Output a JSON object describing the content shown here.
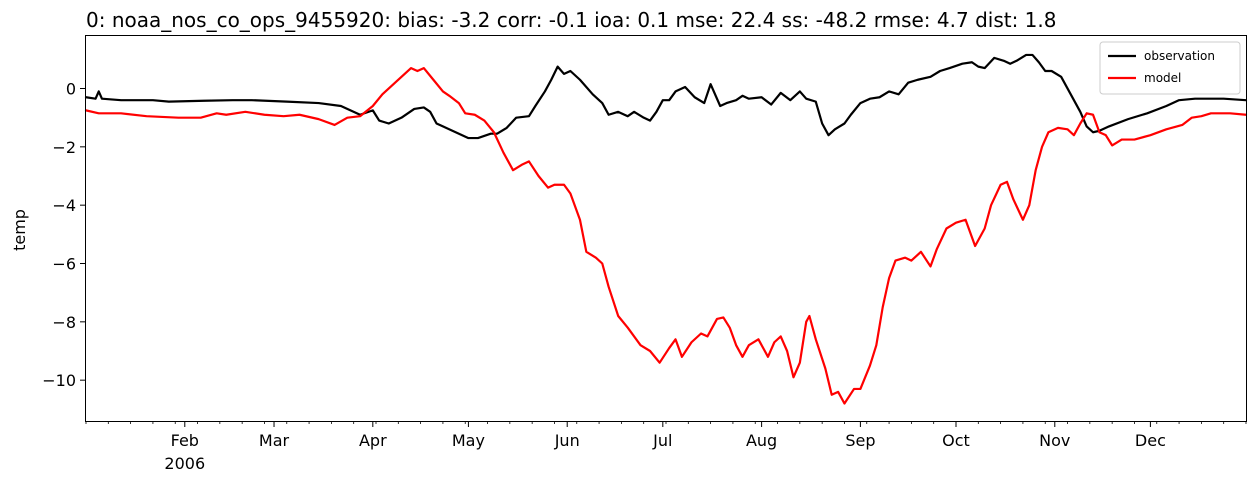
{
  "chart_data": {
    "type": "line",
    "title": "0: noaa_nos_co_ops_9455920: bias: -3.2  corr: -0.1  ioa: 0.1  mse: 22.4  ss: -48.2  rmse: 4.7  dist: 1.8",
    "xlabel": "",
    "ylabel": "temp",
    "xlim": [
      "2006-01-01",
      "2006-12-31"
    ],
    "ylim": [
      -11.4,
      1.8
    ],
    "x_ticks": [
      {
        "date": "2006-02-01",
        "label": "Feb",
        "sublabel": "2006"
      },
      {
        "date": "2006-03-01",
        "label": "Mar"
      },
      {
        "date": "2006-04-01",
        "label": "Apr"
      },
      {
        "date": "2006-05-01",
        "label": "May"
      },
      {
        "date": "2006-06-01",
        "label": "Jun"
      },
      {
        "date": "2006-07-01",
        "label": "Jul"
      },
      {
        "date": "2006-08-01",
        "label": "Aug"
      },
      {
        "date": "2006-09-01",
        "label": "Sep"
      },
      {
        "date": "2006-10-01",
        "label": "Oct"
      },
      {
        "date": "2006-11-01",
        "label": "Nov"
      },
      {
        "date": "2006-12-01",
        "label": "Dec"
      }
    ],
    "y_ticks": [
      0,
      -2,
      -4,
      -6,
      -8,
      -10
    ],
    "y_tick_labels": [
      "0",
      "−2",
      "−4",
      "−6",
      "−8",
      "−10"
    ],
    "grid": false,
    "legend_position": "top-right",
    "series": [
      {
        "name": "observation",
        "color": "#000000",
        "points": [
          [
            "2006-01-01",
            -0.3
          ],
          [
            "2006-01-04",
            -0.35
          ],
          [
            "2006-01-05",
            -0.1
          ],
          [
            "2006-01-06",
            -0.35
          ],
          [
            "2006-01-12",
            -0.4
          ],
          [
            "2006-01-22",
            -0.4
          ],
          [
            "2006-01-27",
            -0.45
          ],
          [
            "2006-02-07",
            -0.42
          ],
          [
            "2006-02-16",
            -0.4
          ],
          [
            "2006-02-22",
            -0.4
          ],
          [
            "2006-03-05",
            -0.45
          ],
          [
            "2006-03-15",
            -0.5
          ],
          [
            "2006-03-22",
            -0.6
          ],
          [
            "2006-03-25",
            -0.75
          ],
          [
            "2006-03-28",
            -0.9
          ],
          [
            "2006-04-01",
            -0.75
          ],
          [
            "2006-04-03",
            -1.1
          ],
          [
            "2006-04-06",
            -1.2
          ],
          [
            "2006-04-10",
            -1.0
          ],
          [
            "2006-04-14",
            -0.7
          ],
          [
            "2006-04-17",
            -0.65
          ],
          [
            "2006-04-19",
            -0.8
          ],
          [
            "2006-04-21",
            -1.2
          ],
          [
            "2006-04-23",
            -1.3
          ],
          [
            "2006-04-27",
            -1.5
          ],
          [
            "2006-05-01",
            -1.7
          ],
          [
            "2006-05-04",
            -1.7
          ],
          [
            "2006-05-08",
            -1.55
          ],
          [
            "2006-05-10",
            -1.55
          ],
          [
            "2006-05-13",
            -1.35
          ],
          [
            "2006-05-16",
            -1.0
          ],
          [
            "2006-05-20",
            -0.95
          ],
          [
            "2006-05-22",
            -0.6
          ],
          [
            "2006-05-25",
            -0.1
          ],
          [
            "2006-05-27",
            0.3
          ],
          [
            "2006-05-29",
            0.75
          ],
          [
            "2006-05-31",
            0.5
          ],
          [
            "2006-06-02",
            0.6
          ],
          [
            "2006-06-05",
            0.3
          ],
          [
            "2006-06-09",
            -0.2
          ],
          [
            "2006-06-12",
            -0.5
          ],
          [
            "2006-06-14",
            -0.9
          ],
          [
            "2006-06-17",
            -0.8
          ],
          [
            "2006-06-20",
            -0.95
          ],
          [
            "2006-06-22",
            -0.8
          ],
          [
            "2006-06-25",
            -1.0
          ],
          [
            "2006-06-27",
            -1.1
          ],
          [
            "2006-06-29",
            -0.8
          ],
          [
            "2006-07-01",
            -0.4
          ],
          [
            "2006-07-03",
            -0.4
          ],
          [
            "2006-07-05",
            -0.1
          ],
          [
            "2006-07-08",
            0.05
          ],
          [
            "2006-07-11",
            -0.3
          ],
          [
            "2006-07-14",
            -0.5
          ],
          [
            "2006-07-16",
            0.15
          ],
          [
            "2006-07-19",
            -0.6
          ],
          [
            "2006-07-21",
            -0.5
          ],
          [
            "2006-07-24",
            -0.4
          ],
          [
            "2006-07-26",
            -0.25
          ],
          [
            "2006-07-28",
            -0.35
          ],
          [
            "2006-08-01",
            -0.3
          ],
          [
            "2006-08-04",
            -0.55
          ],
          [
            "2006-08-07",
            -0.15
          ],
          [
            "2006-08-10",
            -0.4
          ],
          [
            "2006-08-13",
            -0.1
          ],
          [
            "2006-08-15",
            -0.35
          ],
          [
            "2006-08-18",
            -0.45
          ],
          [
            "2006-08-20",
            -1.2
          ],
          [
            "2006-08-22",
            -1.6
          ],
          [
            "2006-08-24",
            -1.4
          ],
          [
            "2006-08-27",
            -1.2
          ],
          [
            "2006-08-29",
            -0.9
          ],
          [
            "2006-09-01",
            -0.5
          ],
          [
            "2006-09-04",
            -0.35
          ],
          [
            "2006-09-07",
            -0.3
          ],
          [
            "2006-09-10",
            -0.1
          ],
          [
            "2006-09-13",
            -0.2
          ],
          [
            "2006-09-16",
            0.2
          ],
          [
            "2006-09-19",
            0.3
          ],
          [
            "2006-09-23",
            0.4
          ],
          [
            "2006-09-26",
            0.6
          ],
          [
            "2006-09-29",
            0.7
          ],
          [
            "2006-10-03",
            0.85
          ],
          [
            "2006-10-06",
            0.9
          ],
          [
            "2006-10-08",
            0.75
          ],
          [
            "2006-10-10",
            0.7
          ],
          [
            "2006-10-13",
            1.05
          ],
          [
            "2006-10-16",
            0.95
          ],
          [
            "2006-10-18",
            0.85
          ],
          [
            "2006-10-20",
            0.95
          ],
          [
            "2006-10-23",
            1.15
          ],
          [
            "2006-10-25",
            1.15
          ],
          [
            "2006-10-27",
            0.9
          ],
          [
            "2006-10-29",
            0.6
          ],
          [
            "2006-10-31",
            0.6
          ],
          [
            "2006-11-03",
            0.4
          ],
          [
            "2006-11-06",
            -0.2
          ],
          [
            "2006-11-09",
            -0.8
          ],
          [
            "2006-11-11",
            -1.3
          ],
          [
            "2006-11-13",
            -1.5
          ],
          [
            "2006-11-15",
            -1.45
          ],
          [
            "2006-11-18",
            -1.3
          ],
          [
            "2006-11-24",
            -1.05
          ],
          [
            "2006-11-30",
            -0.85
          ],
          [
            "2006-12-06",
            -0.6
          ],
          [
            "2006-12-10",
            -0.4
          ],
          [
            "2006-12-15",
            -0.35
          ],
          [
            "2006-12-24",
            -0.35
          ],
          [
            "2006-12-31",
            -0.4
          ]
        ]
      },
      {
        "name": "model",
        "color": "#ff0000",
        "points": [
          [
            "2006-01-01",
            -0.75
          ],
          [
            "2006-01-05",
            -0.85
          ],
          [
            "2006-01-12",
            -0.85
          ],
          [
            "2006-01-20",
            -0.95
          ],
          [
            "2006-01-30",
            -1.0
          ],
          [
            "2006-02-06",
            -1.0
          ],
          [
            "2006-02-11",
            -0.85
          ],
          [
            "2006-02-14",
            -0.9
          ],
          [
            "2006-02-20",
            -0.8
          ],
          [
            "2006-02-26",
            -0.9
          ],
          [
            "2006-03-04",
            -0.95
          ],
          [
            "2006-03-09",
            -0.9
          ],
          [
            "2006-03-15",
            -1.05
          ],
          [
            "2006-03-20",
            -1.25
          ],
          [
            "2006-03-24",
            -1.0
          ],
          [
            "2006-03-28",
            -0.95
          ],
          [
            "2006-04-01",
            -0.6
          ],
          [
            "2006-04-04",
            -0.2
          ],
          [
            "2006-04-07",
            0.1
          ],
          [
            "2006-04-10",
            0.4
          ],
          [
            "2006-04-13",
            0.7
          ],
          [
            "2006-04-15",
            0.6
          ],
          [
            "2006-04-17",
            0.7
          ],
          [
            "2006-04-20",
            0.3
          ],
          [
            "2006-04-23",
            -0.1
          ],
          [
            "2006-04-25",
            -0.25
          ],
          [
            "2006-04-28",
            -0.5
          ],
          [
            "2006-04-30",
            -0.85
          ],
          [
            "2006-05-03",
            -0.9
          ],
          [
            "2006-05-06",
            -1.1
          ],
          [
            "2006-05-09",
            -1.5
          ],
          [
            "2006-05-12",
            -2.2
          ],
          [
            "2006-05-15",
            -2.8
          ],
          [
            "2006-05-18",
            -2.6
          ],
          [
            "2006-05-20",
            -2.5
          ],
          [
            "2006-05-23",
            -3.0
          ],
          [
            "2006-05-26",
            -3.4
          ],
          [
            "2006-05-28",
            -3.3
          ],
          [
            "2006-05-31",
            -3.3
          ],
          [
            "2006-06-02",
            -3.6
          ],
          [
            "2006-06-05",
            -4.5
          ],
          [
            "2006-06-07",
            -5.6
          ],
          [
            "2006-06-10",
            -5.8
          ],
          [
            "2006-06-12",
            -6.0
          ],
          [
            "2006-06-14",
            -6.8
          ],
          [
            "2006-06-17",
            -7.8
          ],
          [
            "2006-06-20",
            -8.2
          ],
          [
            "2006-06-24",
            -8.8
          ],
          [
            "2006-06-27",
            -9.0
          ],
          [
            "2006-06-30",
            -9.4
          ],
          [
            "2006-07-03",
            -8.9
          ],
          [
            "2006-07-05",
            -8.6
          ],
          [
            "2006-07-07",
            -9.2
          ],
          [
            "2006-07-10",
            -8.7
          ],
          [
            "2006-07-13",
            -8.4
          ],
          [
            "2006-07-15",
            -8.5
          ],
          [
            "2006-07-18",
            -7.9
          ],
          [
            "2006-07-20",
            -7.85
          ],
          [
            "2006-07-22",
            -8.2
          ],
          [
            "2006-07-24",
            -8.8
          ],
          [
            "2006-07-26",
            -9.2
          ],
          [
            "2006-07-28",
            -8.8
          ],
          [
            "2006-07-31",
            -8.6
          ],
          [
            "2006-08-03",
            -9.2
          ],
          [
            "2006-08-05",
            -8.7
          ],
          [
            "2006-08-07",
            -8.5
          ],
          [
            "2006-08-09",
            -9.0
          ],
          [
            "2006-08-11",
            -9.9
          ],
          [
            "2006-08-13",
            -9.4
          ],
          [
            "2006-08-15",
            -8.0
          ],
          [
            "2006-08-16",
            -7.8
          ],
          [
            "2006-08-18",
            -8.6
          ],
          [
            "2006-08-21",
            -9.6
          ],
          [
            "2006-08-23",
            -10.5
          ],
          [
            "2006-08-25",
            -10.4
          ],
          [
            "2006-08-27",
            -10.8
          ],
          [
            "2006-08-30",
            -10.3
          ],
          [
            "2006-09-01",
            -10.3
          ],
          [
            "2006-09-04",
            -9.5
          ],
          [
            "2006-09-06",
            -8.8
          ],
          [
            "2006-09-08",
            -7.5
          ],
          [
            "2006-09-10",
            -6.5
          ],
          [
            "2006-09-12",
            -5.9
          ],
          [
            "2006-09-15",
            -5.8
          ],
          [
            "2006-09-17",
            -5.9
          ],
          [
            "2006-09-20",
            -5.6
          ],
          [
            "2006-09-23",
            -6.1
          ],
          [
            "2006-09-25",
            -5.5
          ],
          [
            "2006-09-28",
            -4.8
          ],
          [
            "2006-10-01",
            -4.6
          ],
          [
            "2006-10-04",
            -4.5
          ],
          [
            "2006-10-07",
            -5.4
          ],
          [
            "2006-10-10",
            -4.8
          ],
          [
            "2006-10-12",
            -4.0
          ],
          [
            "2006-10-15",
            -3.3
          ],
          [
            "2006-10-17",
            -3.2
          ],
          [
            "2006-10-19",
            -3.8
          ],
          [
            "2006-10-22",
            -4.5
          ],
          [
            "2006-10-24",
            -4.0
          ],
          [
            "2006-10-26",
            -2.8
          ],
          [
            "2006-10-28",
            -2.0
          ],
          [
            "2006-10-30",
            -1.5
          ],
          [
            "2006-11-02",
            -1.35
          ],
          [
            "2006-11-05",
            -1.4
          ],
          [
            "2006-11-07",
            -1.6
          ],
          [
            "2006-11-09",
            -1.2
          ],
          [
            "2006-11-11",
            -0.85
          ],
          [
            "2006-11-13",
            -0.9
          ],
          [
            "2006-11-15",
            -1.5
          ],
          [
            "2006-11-17",
            -1.6
          ],
          [
            "2006-11-19",
            -1.95
          ],
          [
            "2006-11-22",
            -1.75
          ],
          [
            "2006-11-26",
            -1.75
          ],
          [
            "2006-12-01",
            -1.6
          ],
          [
            "2006-12-06",
            -1.4
          ],
          [
            "2006-12-11",
            -1.25
          ],
          [
            "2006-12-14",
            -1.0
          ],
          [
            "2006-12-17",
            -0.95
          ],
          [
            "2006-12-20",
            -0.85
          ],
          [
            "2006-12-26",
            -0.85
          ],
          [
            "2006-12-31",
            -0.9
          ]
        ]
      }
    ]
  }
}
